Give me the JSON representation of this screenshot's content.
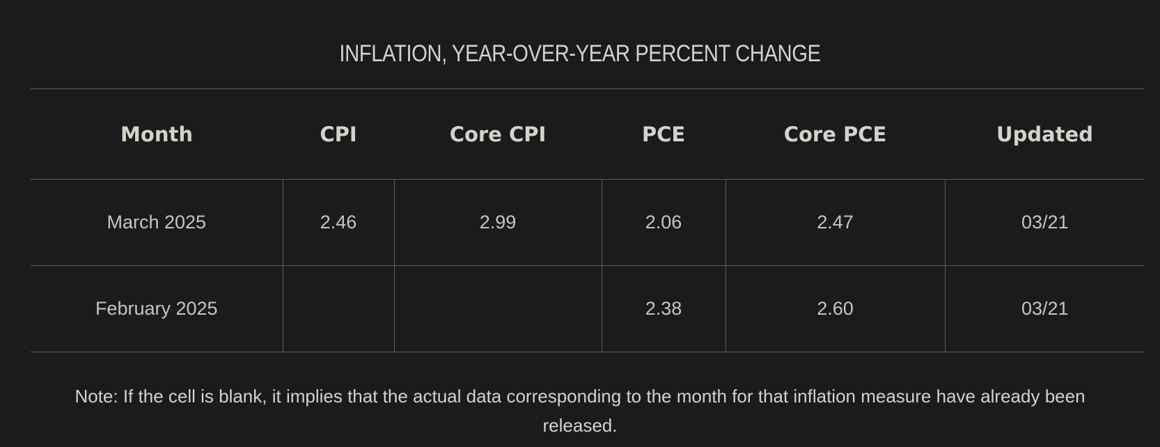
{
  "title": "INFLATION, YEAR-OVER-YEAR PERCENT CHANGE",
  "table": {
    "headers": [
      "Month",
      "CPI",
      "Core CPI",
      "PCE",
      "Core PCE",
      "Updated"
    ],
    "rows": [
      [
        "March 2025",
        "2.46",
        "2.99",
        "2.06",
        "2.47",
        "03/21"
      ],
      [
        "February 2025",
        "",
        "",
        "2.38",
        "2.60",
        "03/21"
      ]
    ]
  },
  "note": "Note: If the cell is blank, it implies that the actual data corresponding to the month for that inflation measure have already been released."
}
